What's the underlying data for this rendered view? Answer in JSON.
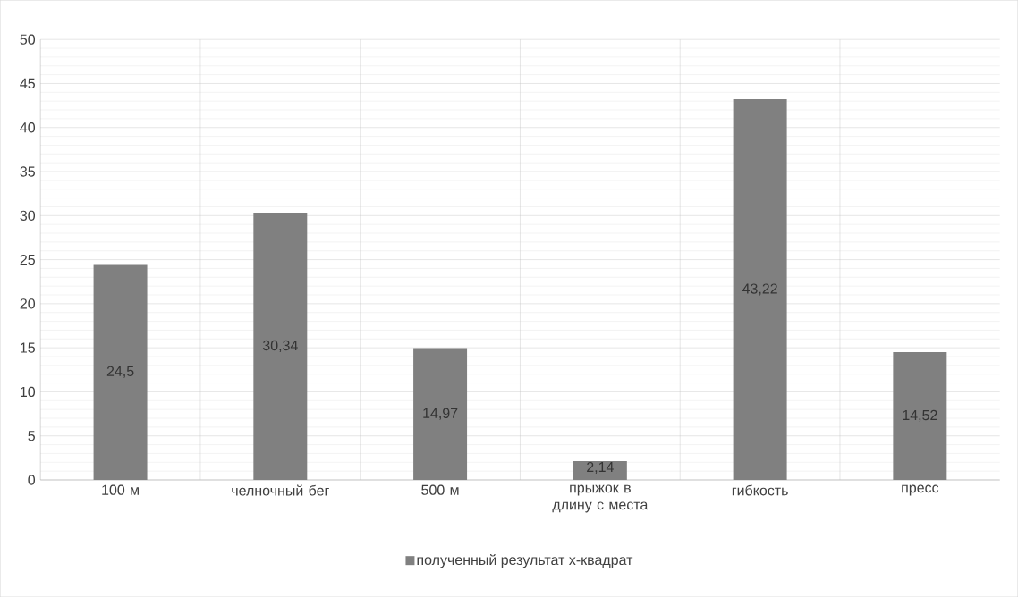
{
  "chart_data": {
    "type": "bar",
    "categories": [
      "100 м",
      "челночный бег",
      "500 м",
      "прыжок в длину с места",
      "гибкость",
      "пресс"
    ],
    "series": [
      {
        "name": "полученный результат х-квадрат",
        "color": "#808080",
        "values": [
          24.5,
          30.34,
          14.97,
          2.14,
          43.22,
          14.52
        ],
        "value_labels": [
          "24,5",
          "30,34",
          "14,97",
          "2,14",
          "43,22",
          "14,52"
        ]
      }
    ],
    "ylim": [
      0,
      50
    ],
    "yticks": [
      0,
      5,
      10,
      15,
      20,
      25,
      30,
      35,
      40,
      45,
      50
    ],
    "grid": true,
    "legend": "bottom"
  }
}
